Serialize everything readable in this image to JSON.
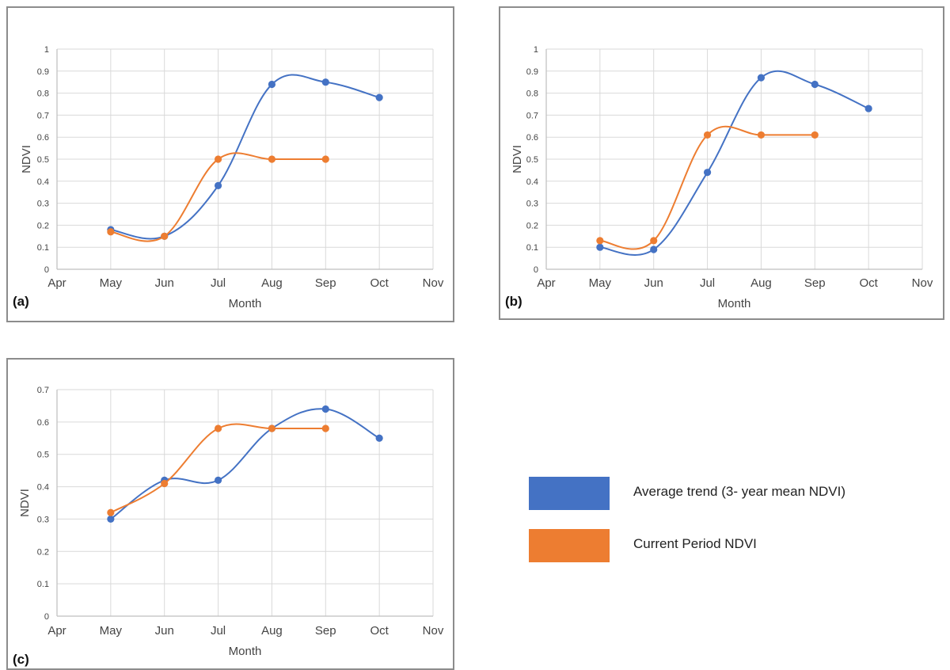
{
  "chart_data": [
    {
      "type": "line",
      "panel_label": "(a)",
      "xlabel": "Month",
      "ylabel": "NDVI",
      "categories": [
        "Apr",
        "May",
        "Jun",
        "Jul",
        "Aug",
        "Sep",
        "Oct",
        "Nov"
      ],
      "ylim": [
        0,
        1
      ],
      "yticks": [
        "0",
        "0.1",
        "0.2",
        "0.3",
        "0.4",
        "0.5",
        "0.6",
        "0.7",
        "0.8",
        "0.9",
        "1"
      ],
      "grid": true,
      "series": [
        {
          "values": [
            null,
            0.18,
            0.15,
            0.38,
            0.84,
            0.85,
            0.78,
            null
          ],
          "color": "#4472C4"
        },
        {
          "values": [
            null,
            0.17,
            0.15,
            0.5,
            0.5,
            0.5,
            null,
            null
          ],
          "color": "#ED7D31"
        }
      ]
    },
    {
      "type": "line",
      "panel_label": "(b)",
      "xlabel": "Month",
      "ylabel": "NDVI",
      "categories": [
        "Apr",
        "May",
        "Jun",
        "Jul",
        "Aug",
        "Sep",
        "Oct",
        "Nov"
      ],
      "ylim": [
        0,
        1
      ],
      "yticks": [
        "0",
        "0.1",
        "0.2",
        "0.3",
        "0.4",
        "0.5",
        "0.6",
        "0.7",
        "0.8",
        "0.9",
        "1"
      ],
      "grid": true,
      "series": [
        {
          "values": [
            null,
            0.1,
            0.09,
            0.44,
            0.87,
            0.84,
            0.73,
            null
          ],
          "color": "#4472C4"
        },
        {
          "values": [
            null,
            0.13,
            0.13,
            0.61,
            0.61,
            0.61,
            null,
            null
          ],
          "color": "#ED7D31"
        }
      ]
    },
    {
      "type": "line",
      "panel_label": "(c)",
      "xlabel": "Month",
      "ylabel": "NDVI",
      "categories": [
        "Apr",
        "May",
        "Jun",
        "Jul",
        "Aug",
        "Sep",
        "Oct",
        "Nov"
      ],
      "ylim": [
        0,
        0.7
      ],
      "yticks": [
        "0",
        "0.1",
        "0.2",
        "0.3",
        "0.4",
        "0.5",
        "0.6",
        "0.7"
      ],
      "grid": true,
      "series": [
        {
          "values": [
            null,
            0.3,
            0.42,
            0.42,
            0.58,
            0.64,
            0.55,
            null
          ],
          "color": "#4472C4"
        },
        {
          "values": [
            null,
            0.32,
            0.41,
            0.58,
            0.58,
            0.58,
            null,
            null
          ],
          "color": "#ED7D31"
        }
      ]
    }
  ],
  "legend": {
    "items": [
      {
        "label": "Average trend (3- year mean NDVI)",
        "color": "#4472C4"
      },
      {
        "label": "Current Period NDVI",
        "color": "#ED7D31"
      }
    ]
  },
  "style": {
    "gridline_color": "#d9d9d9",
    "axis_color": "#bfbfbf",
    "frame_color": "#8c8c8c"
  }
}
